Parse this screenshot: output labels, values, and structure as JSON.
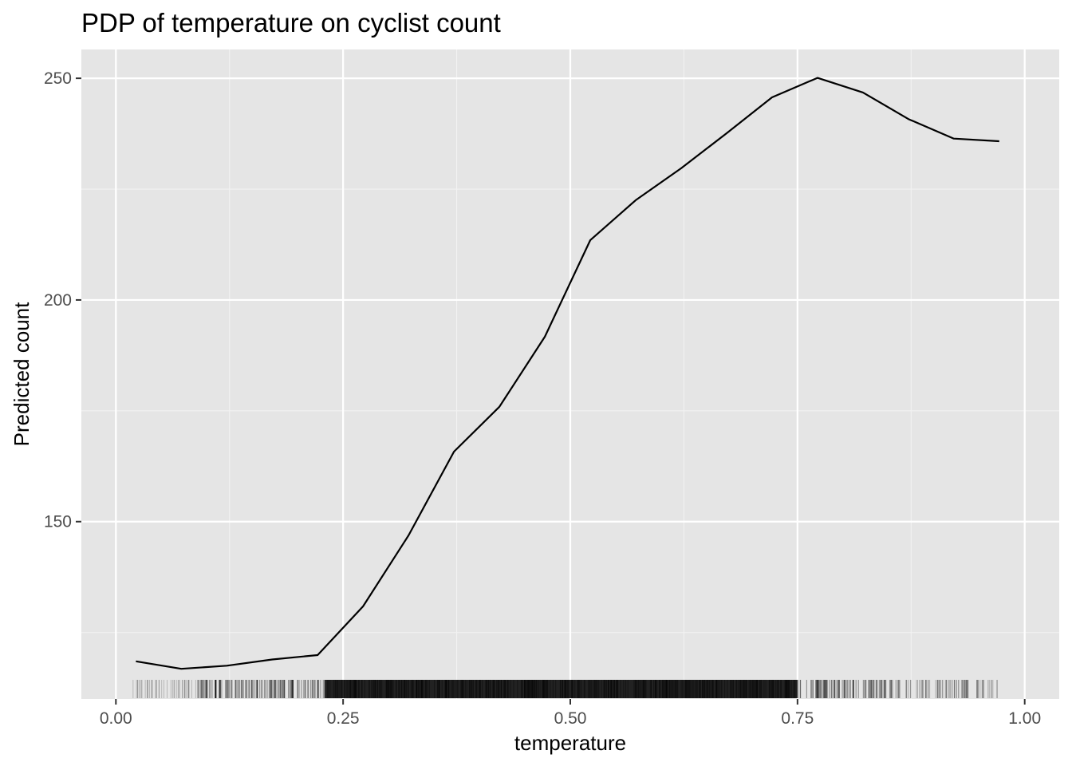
{
  "chart_data": {
    "type": "line",
    "title": "PDP of temperature on cyclist count",
    "xlabel": "temperature",
    "ylabel": "Predicted count",
    "xlim": [
      -0.038,
      1.038
    ],
    "ylim": [
      110,
      256.5
    ],
    "x_ticks": [
      0.0,
      0.25,
      0.5,
      0.75,
      1.0
    ],
    "x_tick_labels": [
      "0.00",
      "0.25",
      "0.50",
      "0.75",
      "1.00"
    ],
    "y_ticks": [
      150,
      200,
      250
    ],
    "y_tick_labels": [
      "150",
      "200",
      "250"
    ],
    "grid": true,
    "legend": "none",
    "series": [
      {
        "x": [
          0.022,
          0.072,
          0.122,
          0.172,
          0.222,
          0.272,
          0.322,
          0.372,
          0.422,
          0.472,
          0.522,
          0.572,
          0.622,
          0.672,
          0.722,
          0.772,
          0.822,
          0.872,
          0.922,
          0.972
        ],
        "y": [
          118.5,
          116.8,
          117.5,
          118.9,
          119.9,
          130.9,
          146.9,
          165.8,
          175.9,
          191.7,
          213.5,
          222.5,
          229.7,
          237.6,
          245.7,
          250.1,
          246.8,
          240.8,
          236.4,
          235.8
        ]
      }
    ],
    "rug": {
      "description_values": "temperature observations",
      "x_range": [
        0.01,
        0.97
      ],
      "dense_range": [
        0.09,
        0.86
      ]
    },
    "colors": {
      "panel_background": "#e5e5e5",
      "grid_major": "#ffffff",
      "grid_minor": "#f2f2f2",
      "line": "#000000",
      "rug": "#000000"
    }
  }
}
